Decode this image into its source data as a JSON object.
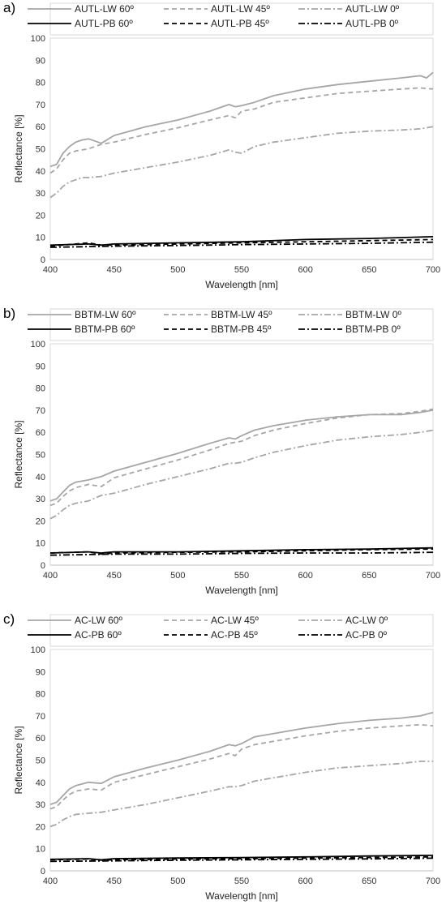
{
  "panels": [
    {
      "label": "a)"
    },
    {
      "label": "b)"
    },
    {
      "label": "c)"
    }
  ],
  "chart_data": [
    {
      "type": "line",
      "xlabel": "Wavelength [nm]",
      "ylabel": "Reflectance [%]",
      "xlim": [
        400,
        700
      ],
      "ylim": [
        0,
        100
      ],
      "xticks": [
        400,
        450,
        500,
        550,
        600,
        650,
        700
      ],
      "yticks": [
        0,
        10,
        20,
        30,
        40,
        50,
        60,
        70,
        80,
        90,
        100
      ],
      "grid": false,
      "legend_position": "top",
      "series": [
        {
          "name": "AUTL-LW 60º",
          "color": "#a6a6a6",
          "dash": "solid",
          "x": [
            400,
            405,
            410,
            415,
            420,
            425,
            430,
            440,
            450,
            475,
            500,
            525,
            540,
            545,
            550,
            560,
            575,
            600,
            625,
            650,
            675,
            690,
            695,
            700
          ],
          "y": [
            42,
            43,
            48,
            51,
            53,
            54,
            54.5,
            52.5,
            56,
            60,
            63,
            67,
            70,
            69,
            69.5,
            71,
            74,
            77,
            79,
            80.5,
            82,
            83,
            82,
            84.5
          ]
        },
        {
          "name": "AUTL-LW 45º",
          "color": "#a6a6a6",
          "dash": "6,4",
          "x": [
            400,
            405,
            410,
            415,
            420,
            425,
            430,
            440,
            450,
            475,
            500,
            525,
            540,
            545,
            550,
            560,
            575,
            600,
            625,
            650,
            675,
            690,
            700
          ],
          "y": [
            39,
            41,
            45,
            48,
            49,
            49.5,
            50,
            52,
            53,
            56.5,
            59.5,
            63,
            65,
            64,
            67,
            68,
            71,
            73,
            75,
            76,
            77,
            77.5,
            77
          ]
        },
        {
          "name": "AUTL-LW 0º",
          "color": "#a6a6a6",
          "dash": "8,3,2,3",
          "x": [
            400,
            405,
            410,
            415,
            420,
            425,
            430,
            440,
            450,
            475,
            500,
            525,
            540,
            545,
            550,
            560,
            575,
            600,
            625,
            650,
            675,
            690,
            700
          ],
          "y": [
            28,
            30,
            33,
            35,
            36,
            37,
            37,
            37.5,
            39,
            41.5,
            44,
            47,
            49.5,
            48.5,
            48,
            51,
            53,
            55,
            57,
            58,
            58.5,
            59,
            60
          ]
        },
        {
          "name": "AUTL-PB 60º",
          "color": "#000000",
          "dash": "solid",
          "x": [
            400,
            430,
            440,
            450,
            500,
            550,
            600,
            650,
            700
          ],
          "y": [
            6.5,
            7,
            6.5,
            7,
            7.5,
            8,
            9,
            9.5,
            10.3
          ]
        },
        {
          "name": "AUTL-PB 45º",
          "color": "#000000",
          "dash": "6,4",
          "x": [
            400,
            430,
            440,
            450,
            500,
            550,
            600,
            650,
            700
          ],
          "y": [
            6,
            7.5,
            6.5,
            6.5,
            7,
            7.5,
            8,
            8.5,
            9
          ]
        },
        {
          "name": "AUTL-PB 0º",
          "color": "#000000",
          "dash": "8,3,2,3",
          "x": [
            400,
            450,
            500,
            550,
            600,
            650,
            700
          ],
          "y": [
            5.5,
            6,
            6.3,
            6.7,
            7,
            7.3,
            7.8
          ]
        }
      ]
    },
    {
      "type": "line",
      "xlabel": "Wavelength [nm]",
      "ylabel": "Reflectance [%]",
      "xlim": [
        400,
        700
      ],
      "ylim": [
        0,
        100
      ],
      "xticks": [
        400,
        450,
        500,
        550,
        600,
        650,
        700
      ],
      "yticks": [
        0,
        10,
        20,
        30,
        40,
        50,
        60,
        70,
        80,
        90,
        100
      ],
      "grid": false,
      "legend_position": "top",
      "series": [
        {
          "name": "BBTM-LW 60º",
          "color": "#a6a6a6",
          "dash": "solid",
          "x": [
            400,
            405,
            410,
            415,
            420,
            430,
            440,
            450,
            475,
            500,
            525,
            540,
            545,
            550,
            560,
            575,
            600,
            625,
            650,
            675,
            690,
            700
          ],
          "y": [
            29,
            30,
            33,
            36,
            37.5,
            38.5,
            40,
            42.5,
            46.5,
            50.5,
            55,
            57.5,
            57,
            58.5,
            61,
            63,
            65.5,
            67,
            68,
            68,
            69,
            70
          ]
        },
        {
          "name": "BBTM-LW 45º",
          "color": "#a6a6a6",
          "dash": "6,4",
          "x": [
            400,
            405,
            410,
            415,
            420,
            430,
            440,
            450,
            475,
            500,
            525,
            540,
            545,
            550,
            560,
            575,
            600,
            625,
            650,
            675,
            690,
            700
          ],
          "y": [
            27,
            28,
            31,
            33.5,
            35,
            36.5,
            35.5,
            39.5,
            43.5,
            47.5,
            52,
            55,
            55.5,
            56,
            58.5,
            61,
            64,
            66.5,
            68,
            68.5,
            69.5,
            70.5
          ]
        },
        {
          "name": "BBTM-LW 0º",
          "color": "#a6a6a6",
          "dash": "8,3,2,3",
          "x": [
            400,
            405,
            410,
            415,
            420,
            430,
            440,
            450,
            475,
            500,
            525,
            540,
            545,
            550,
            560,
            575,
            600,
            625,
            650,
            675,
            690,
            700
          ],
          "y": [
            21,
            22.5,
            25,
            27,
            28,
            29,
            31.5,
            32.5,
            36.5,
            40,
            43.5,
            46,
            46,
            46.5,
            48.5,
            51,
            54,
            56.5,
            58,
            59,
            60,
            61
          ]
        },
        {
          "name": "BBTM-PB 60º",
          "color": "#000000",
          "dash": "solid",
          "x": [
            400,
            430,
            440,
            450,
            500,
            550,
            600,
            650,
            700
          ],
          "y": [
            5.5,
            6,
            5.5,
            6,
            6,
            6.5,
            7,
            7.3,
            7.8
          ]
        },
        {
          "name": "BBTM-PB 45º",
          "color": "#000000",
          "dash": "6,4",
          "x": [
            400,
            430,
            440,
            450,
            500,
            550,
            600,
            650,
            700
          ],
          "y": [
            5.5,
            6,
            5,
            5.5,
            5.8,
            6,
            6.5,
            7,
            7.3
          ]
        },
        {
          "name": "BBTM-PB 0º",
          "color": "#000000",
          "dash": "8,3,2,3",
          "x": [
            400,
            450,
            500,
            550,
            600,
            650,
            700
          ],
          "y": [
            4.5,
            5,
            5,
            5.3,
            5.5,
            5.5,
            5.8
          ]
        }
      ]
    },
    {
      "type": "line",
      "xlabel": "Wavelength [nm]",
      "ylabel": "Reflectance [%]",
      "xlim": [
        400,
        700
      ],
      "ylim": [
        0,
        100
      ],
      "xticks": [
        400,
        450,
        500,
        550,
        600,
        650,
        700
      ],
      "yticks": [
        0,
        10,
        20,
        30,
        40,
        50,
        60,
        70,
        80,
        90,
        100
      ],
      "grid": false,
      "legend_position": "top",
      "series": [
        {
          "name": "AC-LW 60º",
          "color": "#a6a6a6",
          "dash": "solid",
          "x": [
            400,
            405,
            410,
            415,
            420,
            430,
            440,
            450,
            475,
            500,
            525,
            540,
            545,
            550,
            560,
            575,
            600,
            625,
            650,
            675,
            690,
            700
          ],
          "y": [
            30,
            31,
            34,
            37,
            38.5,
            40,
            39.5,
            42.5,
            46.5,
            50,
            54,
            57,
            56.5,
            57.5,
            60.5,
            62,
            64.5,
            66.5,
            68,
            69,
            70,
            71.5
          ]
        },
        {
          "name": "AC-LW 45º",
          "color": "#a6a6a6",
          "dash": "6,4",
          "x": [
            400,
            405,
            410,
            415,
            420,
            430,
            440,
            450,
            475,
            500,
            525,
            540,
            545,
            550,
            560,
            575,
            600,
            625,
            650,
            675,
            690,
            700
          ],
          "y": [
            28,
            29,
            32,
            34.5,
            36,
            37,
            36.5,
            40,
            43.5,
            47,
            50.5,
            53,
            52,
            55,
            57,
            58.5,
            61,
            63,
            64.5,
            65.5,
            66,
            65.5
          ]
        },
        {
          "name": "AC-LW 0º",
          "color": "#a6a6a6",
          "dash": "8,3,2,3",
          "x": [
            400,
            405,
            410,
            415,
            420,
            430,
            440,
            450,
            475,
            500,
            525,
            540,
            545,
            550,
            560,
            575,
            600,
            625,
            650,
            675,
            690,
            700
          ],
          "y": [
            20,
            21,
            23,
            24.5,
            25.5,
            26,
            26.5,
            27.5,
            30,
            33,
            36,
            38,
            38,
            38.5,
            40.5,
            42,
            44.5,
            46.5,
            47.5,
            48.5,
            49.5,
            49.5
          ]
        },
        {
          "name": "AC-PB 60º",
          "color": "#000000",
          "dash": "solid",
          "x": [
            400,
            430,
            440,
            450,
            500,
            550,
            600,
            650,
            700
          ],
          "y": [
            5.2,
            5.5,
            5,
            5.5,
            5.8,
            6,
            6.3,
            6.7,
            7
          ]
        },
        {
          "name": "AC-PB 45º",
          "color": "#000000",
          "dash": "6,4",
          "x": [
            400,
            430,
            440,
            450,
            500,
            550,
            600,
            650,
            700
          ],
          "y": [
            5,
            5.3,
            4.8,
            5,
            5.3,
            5.5,
            5.8,
            6,
            6.3
          ]
        },
        {
          "name": "AC-PB 0º",
          "color": "#000000",
          "dash": "8,3,2,3",
          "x": [
            400,
            450,
            500,
            550,
            600,
            650,
            700
          ],
          "y": [
            4.3,
            4.5,
            4.8,
            5,
            5.2,
            5.4,
            5.7
          ]
        }
      ]
    }
  ]
}
